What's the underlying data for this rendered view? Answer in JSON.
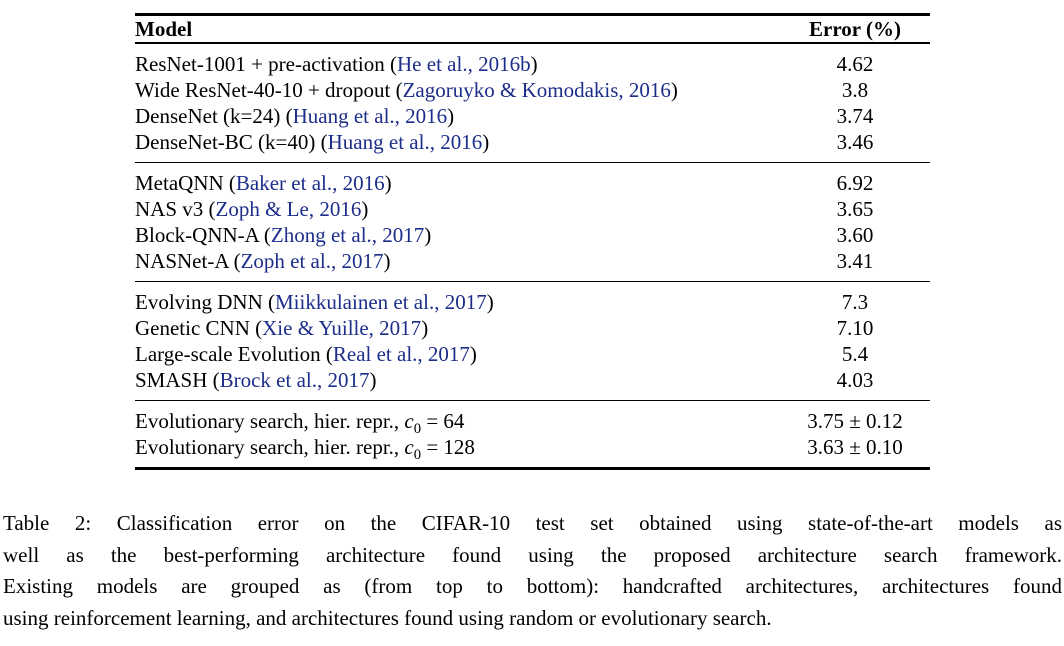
{
  "table": {
    "columns": [
      "Model",
      "Error (%)"
    ],
    "groups": [
      {
        "name": "handcrafted",
        "rows": [
          {
            "pre": "ResNet-1001 + pre-activation (",
            "cite": "He et al., 2016b",
            "post": ")",
            "error": "4.62"
          },
          {
            "pre": "Wide ResNet-40-10 + dropout (",
            "cite": "Zagoruyko & Komodakis, 2016",
            "post": ")",
            "error": "3.8"
          },
          {
            "pre": "DenseNet (k=24) (",
            "cite": "Huang et al., 2016",
            "post": ")",
            "error": "3.74"
          },
          {
            "pre": "DenseNet-BC (k=40) (",
            "cite": "Huang et al., 2016",
            "post": ")",
            "error": "3.46"
          }
        ]
      },
      {
        "name": "reinforcement-learning",
        "rows": [
          {
            "pre": "MetaQNN (",
            "cite": "Baker et al., 2016",
            "post": ")",
            "error": "6.92"
          },
          {
            "pre": "NAS v3 (",
            "cite": "Zoph & Le, 2016",
            "post": ")",
            "error": "3.65"
          },
          {
            "pre": "Block-QNN-A (",
            "cite": "Zhong et al., 2017",
            "post": ")",
            "error": "3.60"
          },
          {
            "pre": "NASNet-A (",
            "cite": "Zoph et al., 2017",
            "post": ")",
            "error": "3.41"
          }
        ]
      },
      {
        "name": "random-evolutionary",
        "rows": [
          {
            "pre": "Evolving DNN (",
            "cite": "Miikkulainen et al., 2017",
            "post": ")",
            "error": "7.3"
          },
          {
            "pre": "Genetic CNN (",
            "cite": "Xie & Yuille, 2017",
            "post": ")",
            "error": "7.10"
          },
          {
            "pre": "Large-scale Evolution (",
            "cite": "Real et al., 2017",
            "post": ")",
            "error": "5.4"
          },
          {
            "pre": "SMASH (",
            "cite": "Brock et al., 2017",
            "post": ")",
            "error": "4.03"
          }
        ]
      },
      {
        "name": "ours",
        "rows": [
          {
            "pre": "Evolutionary search, hier. repr., ",
            "math_var": "c",
            "math_sub": "0",
            "post": " = 64",
            "error": "3.75 ± 0.12"
          },
          {
            "pre": "Evolutionary search, hier. repr., ",
            "math_var": "c",
            "math_sub": "0",
            "post": " = 128",
            "error": "3.63 ± 0.10"
          }
        ]
      }
    ]
  },
  "caption": {
    "lines": [
      "Table 2:  Classification error on the CIFAR-10 test set obtained using state-of-the-art models as",
      "well as the best-performing architecture found using the proposed architecture search framework.",
      "Existing models are grouped as (from top to bottom): handcrafted architectures, architectures found",
      "using reinforcement learning, and architectures found using random or evolutionary search."
    ]
  },
  "colors": {
    "citation_link": "#1c2d8a",
    "text": "#000000",
    "rule": "#000000",
    "background": "#ffffff"
  }
}
